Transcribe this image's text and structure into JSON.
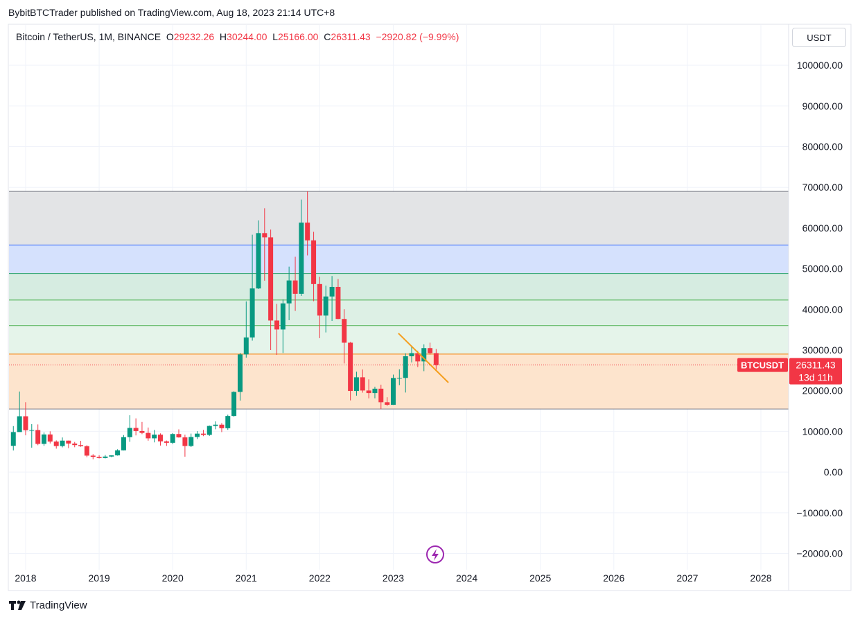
{
  "header": {
    "published": "BybitBTCTrader published on TradingView.com, Aug 18, 2023 21:14 UTC+8",
    "logo": "TradingView",
    "currency_button": "USDT"
  },
  "chart_data": {
    "type": "candlestick",
    "title": "Bitcoin / TetherUS, 1M, BINANCE",
    "ohlc_header": {
      "open_label": "O",
      "open": "29232.26",
      "high_label": "H",
      "high": "30244.00",
      "low_label": "L",
      "low": "25166.00",
      "close_label": "C",
      "close": "26311.43",
      "change": "−2920.82",
      "change_pct": "(−9.99%)"
    },
    "up_color": "#089981",
    "down_color": "#f23645",
    "x": [
      2017.833,
      2017.917,
      2018,
      2018.083,
      2018.167,
      2018.25,
      2018.333,
      2018.417,
      2018.5,
      2018.583,
      2018.667,
      2018.75,
      2018.833,
      2018.917,
      2019,
      2019.083,
      2019.167,
      2019.25,
      2019.333,
      2019.417,
      2019.5,
      2019.583,
      2019.667,
      2019.75,
      2019.833,
      2019.917,
      2020,
      2020.083,
      2020.167,
      2020.25,
      2020.333,
      2020.417,
      2020.5,
      2020.583,
      2020.667,
      2020.75,
      2020.833,
      2020.917,
      2021,
      2021.083,
      2021.167,
      2021.25,
      2021.333,
      2021.417,
      2021.5,
      2021.583,
      2021.667,
      2021.75,
      2021.833,
      2021.917,
      2022,
      2022.083,
      2022.167,
      2022.25,
      2022.333,
      2022.417,
      2022.5,
      2022.583,
      2022.667,
      2022.75,
      2022.833,
      2022.917,
      2023,
      2023.083,
      2023.167,
      2023.25,
      2023.333,
      2023.417,
      2023.5,
      2023.583
    ],
    "open": [
      6449,
      9838,
      13716,
      10285,
      10326,
      6923,
      9246,
      7494,
      6391,
      7730,
      7011,
      6626,
      6371,
      4041,
      3742,
      3458,
      3813,
      4105,
      5350,
      8575,
      10855,
      10085,
      9630,
      8294,
      9199,
      7546,
      7196,
      9350,
      8523,
      6410,
      8620,
      9448,
      9138,
      11335,
      11649,
      10776,
      13791,
      19700,
      28923,
      33092,
      45134,
      58739,
      57697,
      37253,
      35045,
      41461,
      47100,
      43820,
      61300,
      56950,
      46216,
      38466,
      43160,
      45510,
      37630,
      31801,
      19942,
      23296,
      20050,
      19423,
      20490,
      17165,
      16541,
      23125,
      23141,
      28465,
      29233,
      27210,
      30472,
      29232.26
    ],
    "high": [
      11300,
      19798,
      17176,
      11786,
      11710,
      9759,
      10020,
      7786,
      8507,
      7750,
      7410,
      7680,
      6600,
      4400,
      4140,
      4200,
      4140,
      5600,
      9100,
      13970,
      13200,
      12325,
      10950,
      10370,
      9510,
      7750,
      9578,
      10500,
      9188,
      9460,
      10067,
      10380,
      11444,
      12468,
      12050,
      14100,
      19863,
      29300,
      41950,
      58352,
      61844,
      64854,
      59592,
      41330,
      42448,
      50500,
      52920,
      67000,
      69000,
      59053,
      47990,
      45821,
      48189,
      47444,
      40023,
      31986,
      24668,
      25211,
      22800,
      20988,
      21480,
      18387,
      23960,
      25250,
      29184,
      31000,
      29820,
      31390,
      31804,
      30244
    ],
    "low": [
      5325,
      10800,
      9035,
      6000,
      6600,
      6430,
      7032,
      5755,
      6070,
      5880,
      6100,
      6200,
      3652,
      3156,
      3350,
      3350,
      3670,
      4030,
      5330,
      7440,
      9010,
      9320,
      7710,
      7300,
      6515,
      6435,
      6871,
      8450,
      3782,
      6150,
      8117,
      8833,
      8893,
      10518,
      9825,
      10375,
      13621,
      17572,
      28130,
      32296,
      45000,
      47044,
      30000,
      28805,
      29278,
      37332,
      39600,
      43283,
      53256,
      42000,
      32917,
      34322,
      37155,
      37578,
      26700,
      17622,
      18781,
      19520,
      18125,
      18132,
      15476,
      16256,
      16499,
      21351,
      19549,
      26942,
      25811,
      24800,
      28861,
      25166
    ],
    "close": [
      9838,
      13716,
      10285,
      10326,
      6923,
      9246,
      7494,
      6391,
      7730,
      7011,
      6626,
      6371,
      4041,
      3742,
      3458,
      3813,
      4105,
      5350,
      8575,
      10855,
      10085,
      9630,
      8294,
      9199,
      7546,
      7196,
      9350,
      8523,
      6410,
      8620,
      9448,
      9138,
      11335,
      11649,
      10776,
      13791,
      19700,
      28923,
      33092,
      45134,
      58739,
      57697,
      37253,
      35045,
      41461,
      47100,
      43820,
      61300,
      56950,
      46216,
      38466,
      43160,
      45510,
      37630,
      31801,
      19942,
      23296,
      20050,
      19423,
      20490,
      17165,
      16541,
      23125,
      23141,
      28465,
      29233,
      27210,
      30472,
      29232.26,
      26311.43
    ],
    "xlim": [
      2017.774,
      2028.377
    ],
    "xticks": [
      2018,
      2019,
      2020,
      2021,
      2022,
      2023,
      2024,
      2025,
      2026,
      2027,
      2028
    ],
    "ylim": [
      -24000,
      109900
    ],
    "yticks": [
      {
        "value": 100000,
        "label": "100000.00"
      },
      {
        "value": 90000,
        "label": "90000.00"
      },
      {
        "value": 80000,
        "label": "80000.00"
      },
      {
        "value": 70000,
        "label": "70000.00"
      },
      {
        "value": 60000,
        "label": "60000.00"
      },
      {
        "value": 50000,
        "label": "50000.00"
      },
      {
        "value": 40000,
        "label": "40000.00"
      },
      {
        "value": 30000,
        "label": "30000.00"
      },
      {
        "value": 20000,
        "label": "20000.00"
      },
      {
        "value": 10000,
        "label": "10000.00"
      },
      {
        "value": 0,
        "label": "0.00"
      },
      {
        "value": -10000,
        "label": "−10000.00"
      },
      {
        "value": -20000,
        "label": "−20000.00"
      }
    ],
    "grid": true,
    "zones": [
      {
        "from": 55800,
        "to": 69000,
        "color": "#e3e4e6"
      },
      {
        "from": 48800,
        "to": 55800,
        "color": "#d5e1fd"
      },
      {
        "from": 42300,
        "to": 48800,
        "color": "#d6ece1"
      },
      {
        "from": 36000,
        "to": 42300,
        "color": "#ddf0e5"
      },
      {
        "from": 29000,
        "to": 36000,
        "color": "#e5f4ea"
      },
      {
        "from": 15500,
        "to": 29000,
        "color": "#fde4cd"
      }
    ],
    "levels": [
      {
        "value": 69000,
        "color": "#787b86"
      },
      {
        "value": 55800,
        "color": "#2962ff"
      },
      {
        "value": 48800,
        "color": "#26a269"
      },
      {
        "value": 42300,
        "color": "#4caf50"
      },
      {
        "value": 36000,
        "color": "#4caf50"
      },
      {
        "value": 29000,
        "color": "#f57c00"
      },
      {
        "value": 15500,
        "color": "#787b86"
      }
    ],
    "trendline": {
      "x": [
        2023.07,
        2023.75
      ],
      "y": [
        34100,
        22000
      ],
      "color": "#f59d1b"
    },
    "last_price": {
      "symbol": "BTCUSDT",
      "value": 26311.43,
      "label": "26311.43",
      "countdown": "13d 11h",
      "color": "#f23645"
    }
  }
}
